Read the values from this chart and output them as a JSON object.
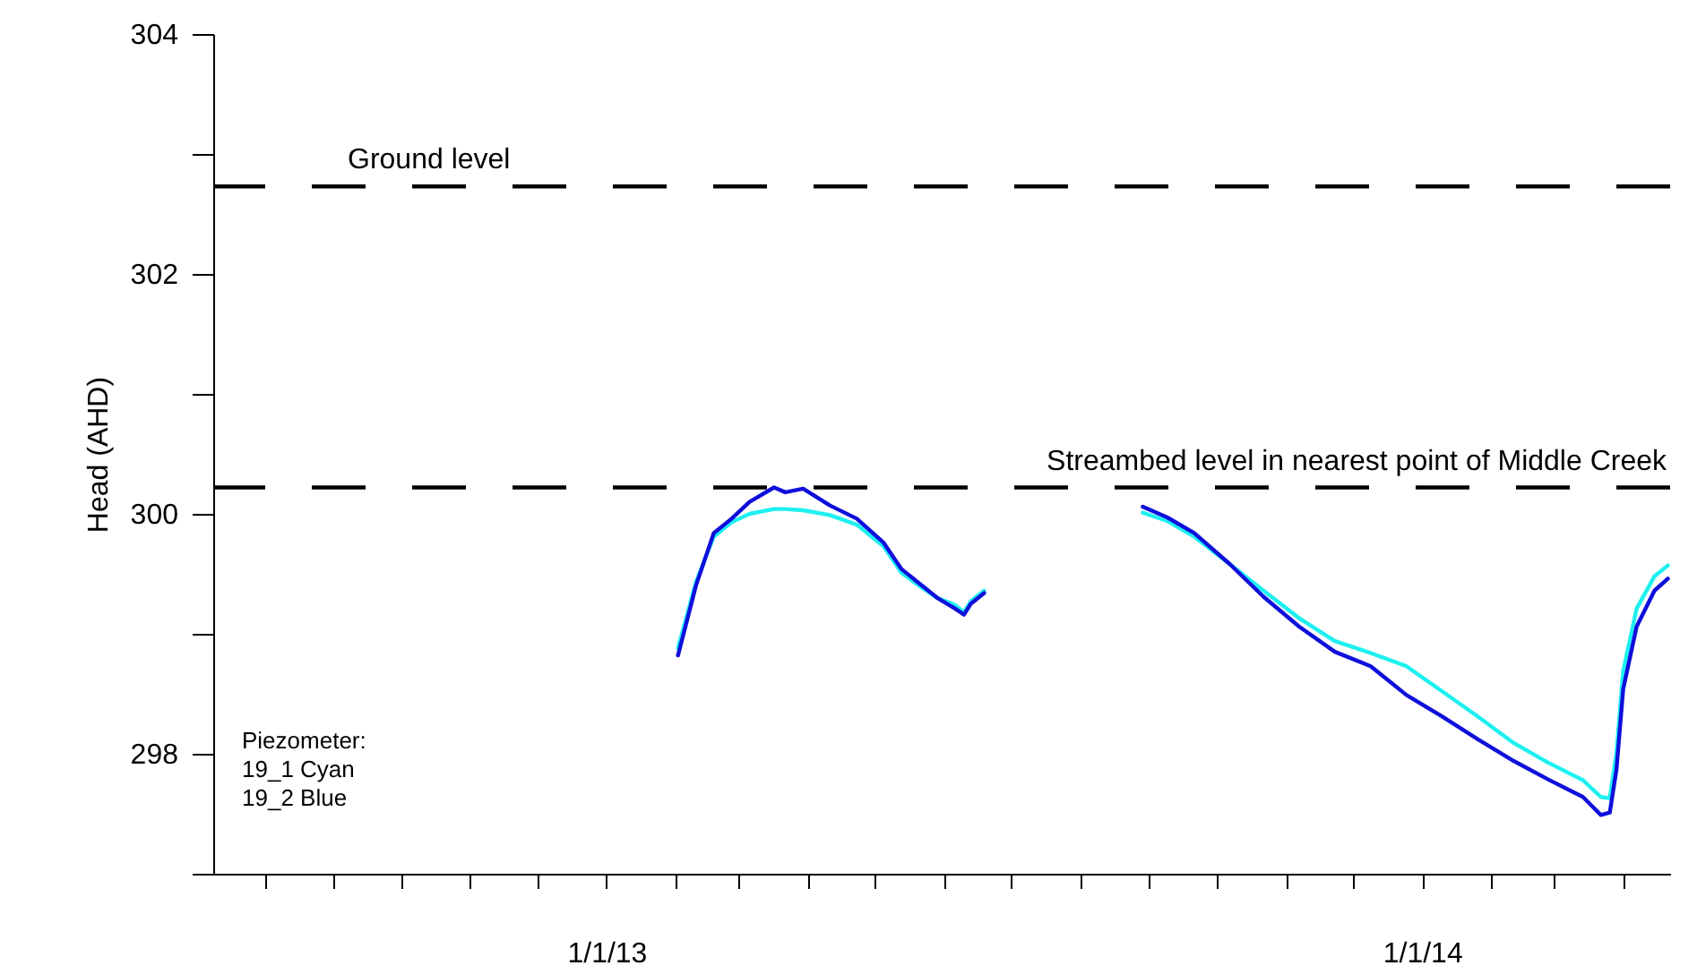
{
  "chart_data": {
    "type": "line",
    "ylabel": "Head (AHD)",
    "xlim": [
      "2012-07-09",
      "2014-04-22"
    ],
    "xticks": [
      {
        "value": "2012-08-01",
        "label": null
      },
      {
        "value": "2012-09-01",
        "label": null
      },
      {
        "value": "2012-10-01",
        "label": null
      },
      {
        "value": "2012-11-01",
        "label": null
      },
      {
        "value": "2012-12-01",
        "label": null
      },
      {
        "value": "2013-01-01",
        "label": "1/1/13"
      },
      {
        "value": "2013-02-01",
        "label": null
      },
      {
        "value": "2013-03-01",
        "label": null
      },
      {
        "value": "2013-04-01",
        "label": null
      },
      {
        "value": "2013-05-01",
        "label": null
      },
      {
        "value": "2013-06-01",
        "label": null
      },
      {
        "value": "2013-07-01",
        "label": null
      },
      {
        "value": "2013-08-01",
        "label": null
      },
      {
        "value": "2013-09-01",
        "label": null
      },
      {
        "value": "2013-10-01",
        "label": null
      },
      {
        "value": "2013-11-01",
        "label": null
      },
      {
        "value": "2013-12-01",
        "label": null
      },
      {
        "value": "2014-01-01",
        "label": "1/1/14"
      },
      {
        "value": "2014-02-01",
        "label": null
      },
      {
        "value": "2014-03-01",
        "label": null
      },
      {
        "value": "2014-04-01",
        "label": null
      }
    ],
    "ylim": [
      297,
      304
    ],
    "yticks": [
      {
        "value": 297,
        "label": null
      },
      298,
      {
        "value": 299,
        "label": null
      },
      300,
      {
        "value": 301,
        "label": null
      },
      302,
      {
        "value": 303,
        "label": null
      },
      304
    ],
    "x": [
      "2013-02-02",
      "2013-02-10",
      "2013-02-18",
      "2013-02-26",
      "2013-03-06",
      "2013-03-17",
      "2013-03-22",
      "2013-03-30",
      "2013-04-11",
      "2013-04-23",
      "2013-05-05",
      "2013-05-13",
      "2013-05-21",
      "2013-05-29",
      "2013-06-06",
      "2013-06-10",
      "2013-06-13",
      "2013-06-19",
      "2013-08-01",
      "2013-08-29",
      "2013-09-09",
      "2013-09-21",
      "2013-10-07",
      "2013-10-22",
      "2013-11-07",
      "2013-11-23",
      "2013-12-09",
      "2013-12-25",
      "2014-01-10",
      "2014-01-26",
      "2014-02-11",
      "2014-02-26",
      "2014-03-14",
      "2014-03-22",
      "2014-03-26",
      "2014-03-29",
      "2014-04-01",
      "2014-04-07",
      "2014-04-15",
      "2014-04-21"
    ],
    "series": [
      {
        "color": "#1ef0f0",
        "values": [
          298.88,
          299.43,
          299.81,
          299.93,
          300.0,
          300.04,
          300.04,
          300.03,
          299.99,
          299.91,
          299.73,
          299.51,
          299.4,
          299.3,
          299.24,
          299.18,
          299.27,
          299.36,
          null,
          300.01,
          299.94,
          299.81,
          299.58,
          299.36,
          299.13,
          298.94,
          298.84,
          298.73,
          298.52,
          298.31,
          298.09,
          297.93,
          297.78,
          297.64,
          297.63,
          298.01,
          298.69,
          299.21,
          299.48,
          299.57
        ]
      },
      {
        "color": "#0f0fdc",
        "values": [
          298.82,
          299.4,
          299.84,
          299.96,
          300.1,
          300.22,
          300.18,
          300.21,
          300.07,
          299.96,
          299.76,
          299.54,
          299.42,
          299.3,
          299.21,
          299.16,
          299.25,
          299.34,
          null,
          300.06,
          299.97,
          299.84,
          299.58,
          299.31,
          299.06,
          298.85,
          298.73,
          298.49,
          298.31,
          298.12,
          297.94,
          297.79,
          297.64,
          297.49,
          297.51,
          297.87,
          298.54,
          299.06,
          299.36,
          299.46
        ]
      }
    ],
    "ref_lines": [
      {
        "axis": "y",
        "value": 302.73,
        "label": "Ground level",
        "color": "#000000",
        "line_style": "dashed"
      },
      {
        "axis": "y",
        "value": 300.22,
        "label": "Streambed level in nearest point of Middle Creek",
        "color": "#000000",
        "line_style": "dashed"
      }
    ],
    "annotations": [
      "Piezometer:",
      "19_1 Cyan",
      "19_2 Blue"
    ]
  }
}
